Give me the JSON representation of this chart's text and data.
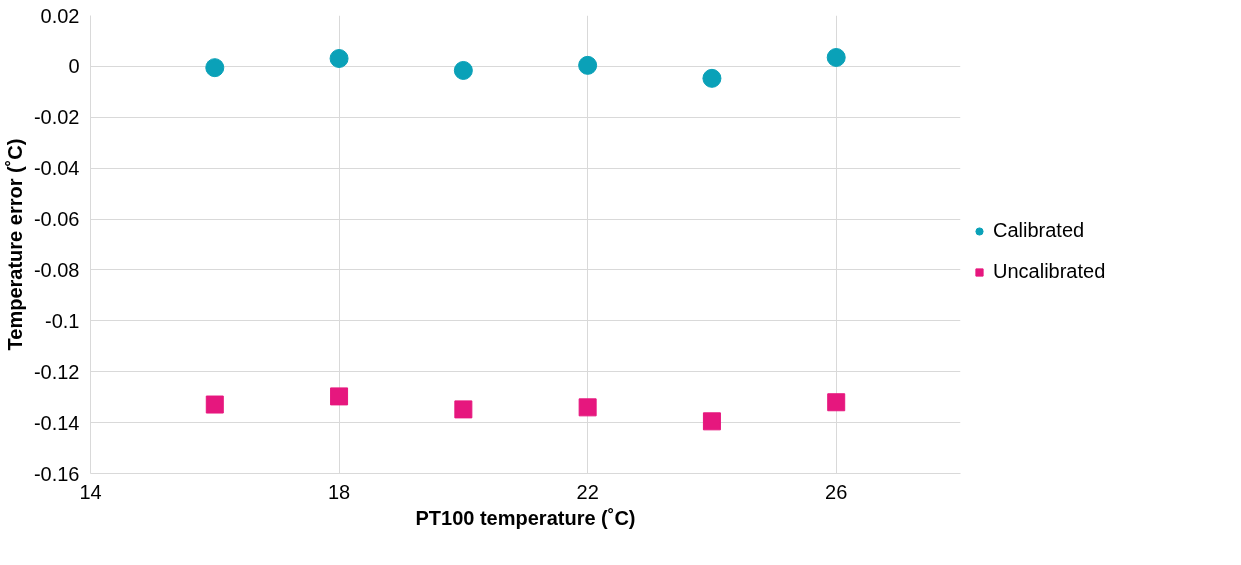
{
  "chart_data": {
    "type": "scatter",
    "xlabel": "PT100 temperature (˚C)",
    "ylabel": "Temperature error (˚C)",
    "x": [
      16,
      18,
      20,
      22,
      24,
      26
    ],
    "series": [
      {
        "name": "Calibrated",
        "color": "#0aa1b8",
        "marker": "circle",
        "values": [
          -0.0005,
          0.0031,
          -0.0016,
          0.0004,
          -0.0047,
          0.0035
        ]
      },
      {
        "name": "Uncalibrated",
        "color": "#e6177e",
        "marker": "square",
        "values": [
          -0.1329,
          -0.1297,
          -0.1348,
          -0.134,
          -0.1395,
          -0.132
        ]
      }
    ],
    "xlim": [
      14,
      28
    ],
    "xticks": [
      14,
      18,
      22,
      26
    ],
    "ylim": [
      -0.16,
      0.02
    ],
    "yticks": [
      {
        "value": 0.02,
        "label": "0.02"
      },
      {
        "value": 0,
        "label": "0"
      },
      {
        "value": -0.02,
        "label": "-0.02"
      },
      {
        "value": -0.04,
        "label": "-0.04"
      },
      {
        "value": -0.06,
        "label": "-0.06"
      },
      {
        "value": -0.08,
        "label": "-0.08"
      },
      {
        "value": -0.1,
        "label": "-0.1"
      },
      {
        "value": -0.12,
        "label": "-0.12"
      },
      {
        "value": -0.14,
        "label": "-0.14"
      },
      {
        "value": -0.16,
        "label": "-0.16"
      }
    ],
    "grid": true,
    "legend": "right"
  }
}
